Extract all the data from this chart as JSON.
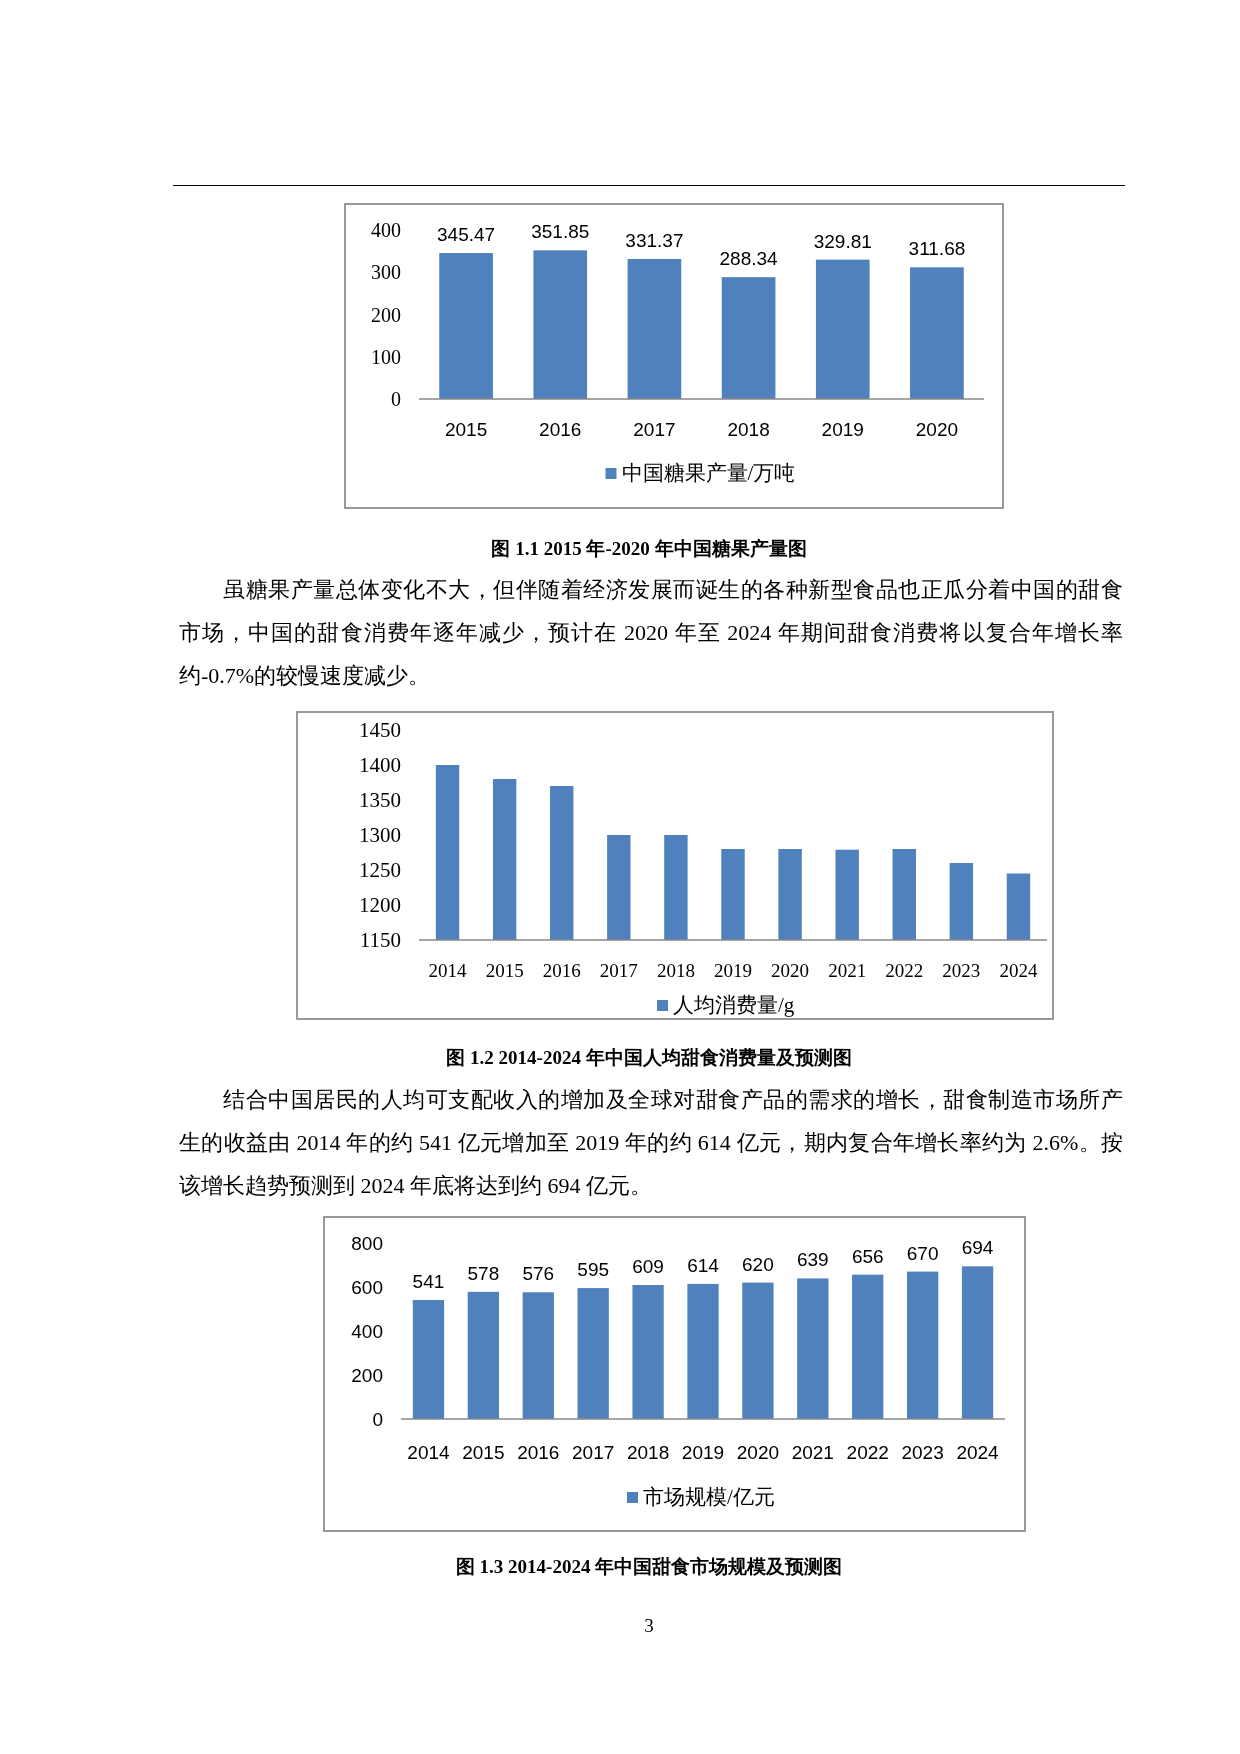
{
  "chart_data": [
    {
      "type": "bar",
      "title": "图 1.1 2015 年-2020 年中国糖果产量图",
      "categories": [
        "2015",
        "2016",
        "2017",
        "2018",
        "2019",
        "2020"
      ],
      "series": [
        {
          "name": "中国糖果产量/万吨",
          "color": "#4f81bd",
          "values": [
            345.47,
            351.85,
            331.37,
            288.34,
            329.81,
            311.68
          ]
        }
      ],
      "ylim": [
        0,
        400
      ],
      "yticks": [
        0,
        100,
        200,
        300,
        400
      ],
      "data_labels": true,
      "legend": "bottom",
      "annotations": [
        "虽糖果产量总体变化不大，但伴随着经济发展而诞生的各种新型食品也正瓜分着中国的甜食市场，中国的甜食消费年逐年减少，预计在 2020 年至 2024 年期间甜食消费将以复合年增长率约-0.7%的较慢速度减少。"
      ]
    },
    {
      "type": "bar",
      "title": "图 1.2 2014-2024 年中国人均甜食消费量及预测图",
      "categories": [
        "2014",
        "2015",
        "2016",
        "2017",
        "2018",
        "2019",
        "2020",
        "2021",
        "2022",
        "2023",
        "2024"
      ],
      "series": [
        {
          "name": "人均消费量/g",
          "color": "#4f81bd",
          "values": [
            1400,
            1380,
            1370,
            1300,
            1300,
            1280,
            1280,
            1279,
            1280,
            1260,
            1245
          ]
        }
      ],
      "ylim": [
        1150,
        1450
      ],
      "yticks": [
        1150,
        1200,
        1250,
        1300,
        1350,
        1400,
        1450
      ],
      "legend": "bottom",
      "annotations": [
        "结合中国居民的人均可支配收入的增加及全球对甜食产品的需求的增长，甜食制造市场所产生的收益由 2014 年的约 541 亿元增加至 2019 年的约 614 亿元，期内复合年增长率约为 2.6%。按该增长趋势预测到 2024 年底将达到约 694 亿元。"
      ]
    },
    {
      "type": "bar",
      "title": "图 1.3 2014-2024 年中国甜食市场规模及预测图",
      "categories": [
        "2014",
        "2015",
        "2016",
        "2017",
        "2018",
        "2019",
        "2020",
        "2021",
        "2022",
        "2023",
        "2024"
      ],
      "series": [
        {
          "name": "市场规模/亿元",
          "color": "#4f81bd",
          "values": [
            541,
            578,
            576,
            595,
            609,
            614,
            620,
            639,
            656,
            670,
            694
          ]
        }
      ],
      "ylim": [
        0,
        800
      ],
      "yticks": [
        0,
        200,
        400,
        600,
        800
      ],
      "data_labels": true,
      "legend": "bottom",
      "annotations": [
        "3"
      ]
    }
  ]
}
